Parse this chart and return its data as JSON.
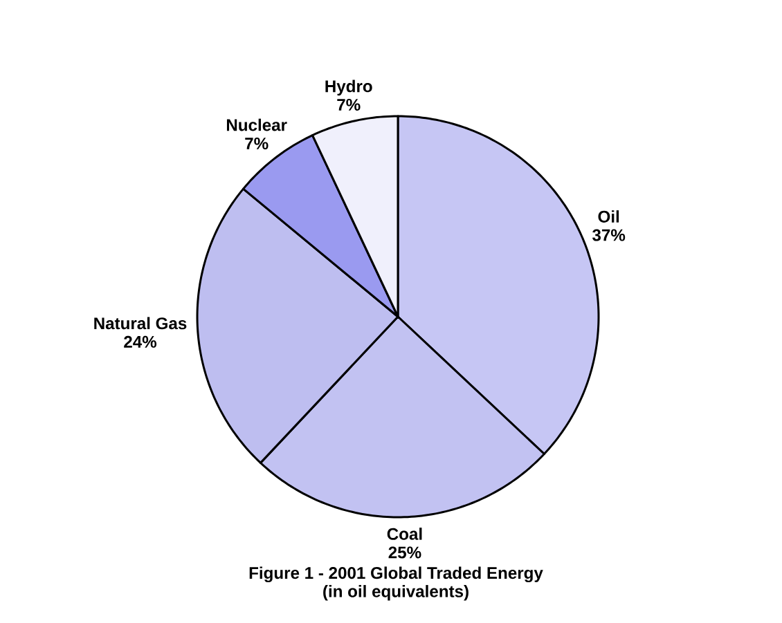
{
  "chart_data": {
    "type": "pie",
    "title": "Figure 1  - 2001 Global Traded Energy",
    "subtitle": "(in oil equivalents)",
    "categories": [
      "Oil",
      "Coal",
      "Natural Gas",
      "Nuclear",
      "Hydro"
    ],
    "values": [
      37,
      25,
      24,
      7,
      7
    ],
    "value_labels": [
      "37%",
      "25%",
      "24%",
      "7%",
      "7%"
    ],
    "colors": [
      "#c6c6f4",
      "#c2c2f2",
      "#bebef0",
      "#9a9af0",
      "#f0f0fc"
    ]
  }
}
